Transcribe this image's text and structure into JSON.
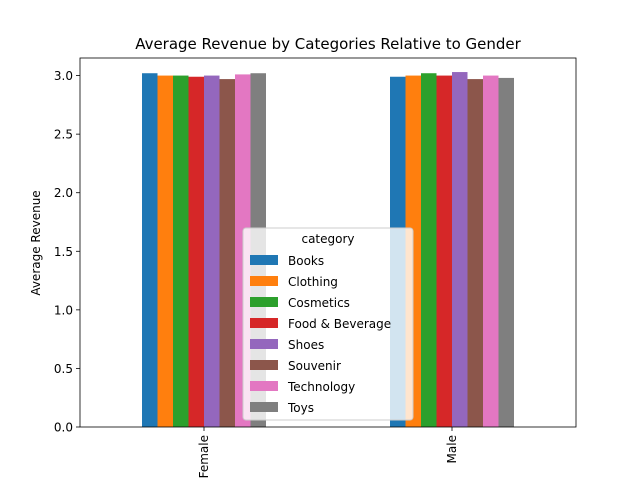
{
  "chart_data": {
    "type": "bar",
    "title": "Average Revenue by Categories Relative to Gender",
    "xlabel": "",
    "ylabel": "Average Revenue",
    "categories": [
      "Female",
      "Male"
    ],
    "ylim": [
      0,
      3.15
    ],
    "yticks": [
      "0.0",
      "0.5",
      "1.0",
      "1.5",
      "2.0",
      "2.5",
      "3.0"
    ],
    "grid": false,
    "legend": {
      "title": "category",
      "placement": "lower center"
    },
    "series": [
      {
        "name": "Books",
        "color": "#1f77b4",
        "values": [
          3.02,
          2.99
        ]
      },
      {
        "name": "Clothing",
        "color": "#ff7f0e",
        "values": [
          3.0,
          3.0
        ]
      },
      {
        "name": "Cosmetics",
        "color": "#2ca02c",
        "values": [
          3.0,
          3.02
        ]
      },
      {
        "name": "Food & Beverage",
        "color": "#d62728",
        "values": [
          2.99,
          3.0
        ]
      },
      {
        "name": "Shoes",
        "color": "#9467bd",
        "values": [
          3.0,
          3.03
        ]
      },
      {
        "name": "Souvenir",
        "color": "#8c564b",
        "values": [
          2.97,
          2.97
        ]
      },
      {
        "name": "Technology",
        "color": "#e377c2",
        "values": [
          3.01,
          3.0
        ]
      },
      {
        "name": "Toys",
        "color": "#7f7f7f",
        "values": [
          3.02,
          2.98
        ]
      }
    ]
  }
}
